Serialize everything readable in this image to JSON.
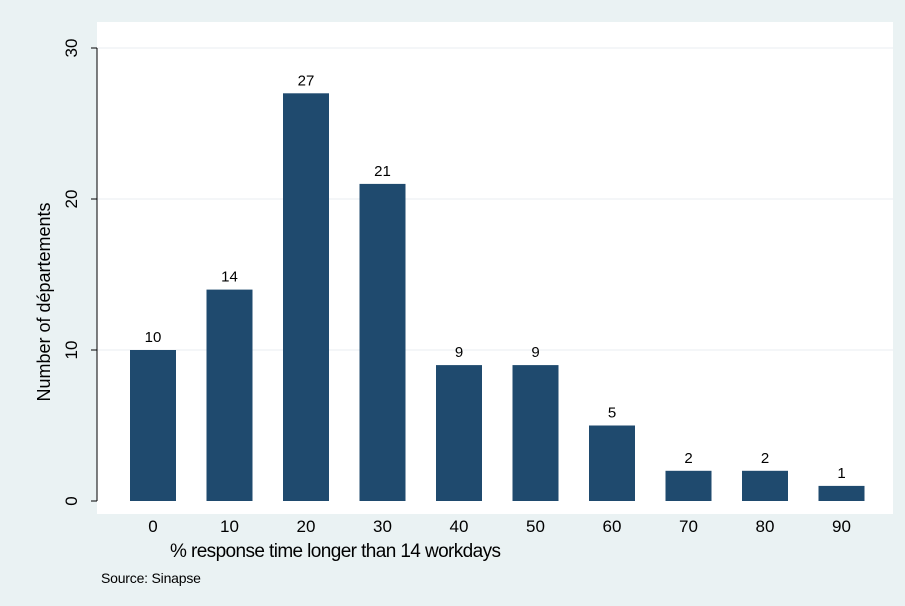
{
  "chart_data": {
    "type": "bar",
    "categories": [
      "0",
      "10",
      "20",
      "30",
      "40",
      "50",
      "60",
      "70",
      "80",
      "90"
    ],
    "values": [
      10,
      14,
      27,
      21,
      9,
      9,
      5,
      2,
      2,
      1
    ],
    "data_labels": [
      "10",
      "14",
      "27",
      "21",
      "9",
      "9",
      "5",
      "2",
      "2",
      "1"
    ],
    "xlabel": "% response time longer than 14 workdays",
    "ylabel": "Number of départements",
    "yticks": [
      0,
      10,
      20,
      30
    ],
    "ylim": [
      0,
      30
    ],
    "grid": "horizontal",
    "legend": "none",
    "note": "Source: Sinapse",
    "colors": {
      "bar": "#1f4a6e",
      "plot_background": "#ffffff",
      "page_background": "#eaf2f3",
      "gridline": "#e8eef0"
    }
  }
}
